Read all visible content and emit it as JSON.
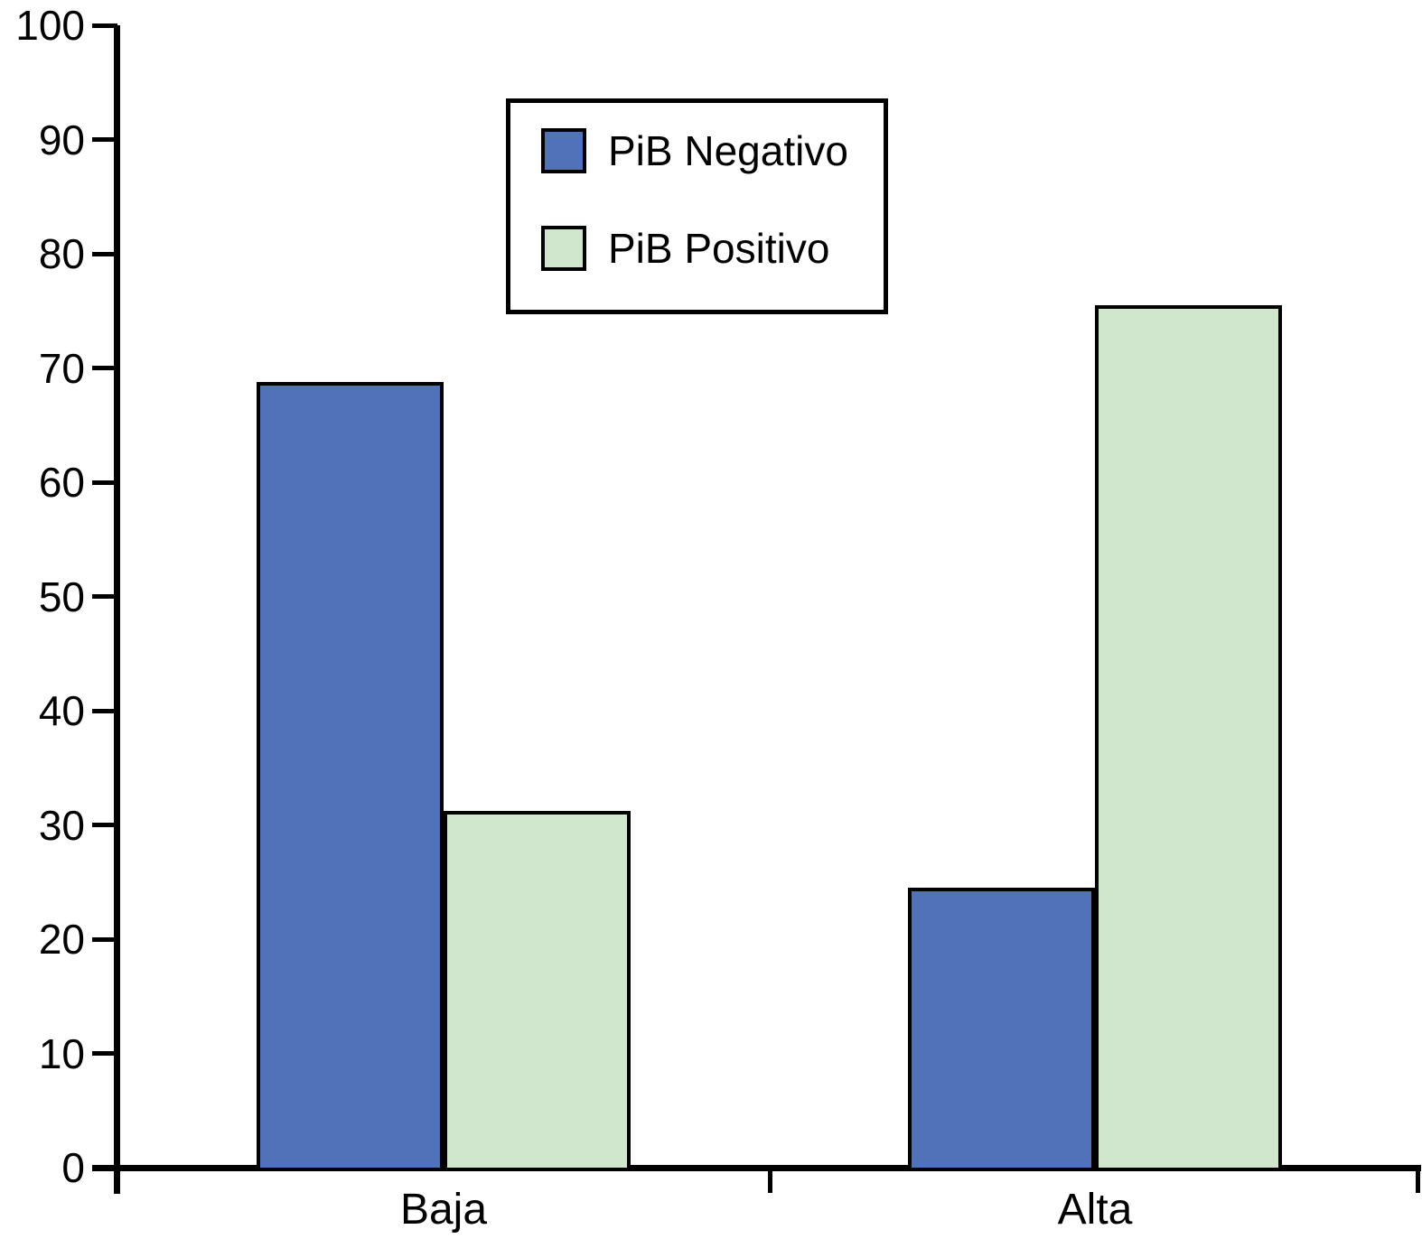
{
  "chart_data": {
    "type": "bar",
    "title": "",
    "xlabel": "",
    "ylabel": "",
    "categories": [
      "Baja",
      "Alta"
    ],
    "series": [
      {
        "name": "PiB Negativo",
        "color": "#5072b8",
        "values": [
          68.8,
          24.5
        ]
      },
      {
        "name": "PiB Positivo",
        "color": "#d0e7cd",
        "values": [
          31.2,
          75.5
        ]
      }
    ],
    "ylim": [
      0,
      100
    ],
    "yticks": [
      0,
      10,
      20,
      30,
      40,
      50,
      60,
      70,
      80,
      90,
      100
    ],
    "grid": false,
    "legend_position": "upper-center-left",
    "axis_color": "#000000",
    "bar_border_color": "#000000",
    "background_color": "#ffffff"
  }
}
